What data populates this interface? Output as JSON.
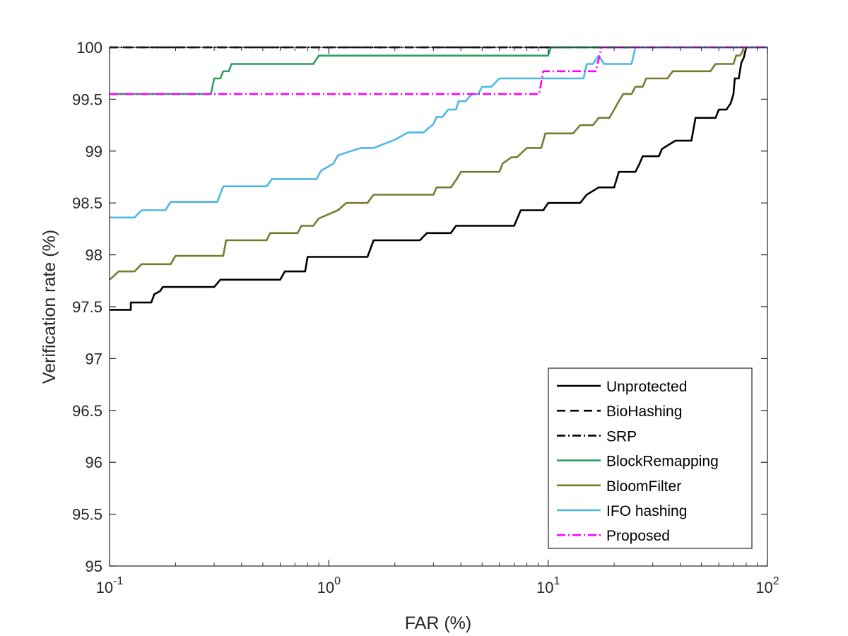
{
  "chart_data": {
    "type": "line",
    "title": "",
    "xlabel": "FAR (%)",
    "ylabel": "Verification rate (%)",
    "xscale": "log",
    "xlim": [
      0.1,
      100
    ],
    "ylim": [
      95,
      100
    ],
    "x_ticks": [
      0.1,
      1,
      10,
      100
    ],
    "x_tick_labels": [
      {
        "base": "10",
        "exp": "-1"
      },
      {
        "base": "10",
        "exp": "0"
      },
      {
        "base": "10",
        "exp": "1"
      },
      {
        "base": "10",
        "exp": "2"
      }
    ],
    "y_ticks": [
      "95",
      "95.5",
      "96",
      "96.5",
      "97",
      "97.5",
      "98",
      "98.5",
      "99",
      "99.5",
      "100"
    ],
    "grid": false,
    "legend_position": "bottom-right",
    "series": [
      {
        "name": "Unprotected",
        "color": "#000000",
        "dash": "solid",
        "x": [
          0.1,
          0.125,
          0.125,
          0.155,
          0.16,
          0.17,
          0.175,
          0.3,
          0.32,
          0.33,
          0.6,
          0.63,
          0.78,
          0.8,
          1.5,
          1.6,
          2.6,
          2.8,
          3.6,
          3.8,
          7.0,
          7.5,
          9.5,
          10,
          14,
          15,
          17,
          20,
          21,
          25,
          26,
          27,
          32,
          33,
          38,
          45,
          47,
          58,
          60,
          65,
          68,
          70,
          71,
          74,
          76,
          78,
          80,
          84,
          86,
          100
        ],
        "y": [
          97.47,
          97.47,
          97.54,
          97.54,
          97.62,
          97.65,
          97.69,
          97.69,
          97.76,
          97.76,
          97.76,
          97.84,
          97.84,
          97.98,
          97.98,
          98.14,
          98.14,
          98.21,
          98.21,
          98.28,
          98.28,
          98.43,
          98.43,
          98.5,
          98.5,
          98.58,
          98.65,
          98.65,
          98.8,
          98.8,
          98.87,
          98.95,
          98.95,
          99.02,
          99.1,
          99.1,
          99.32,
          99.32,
          99.4,
          99.4,
          99.46,
          99.55,
          99.7,
          99.7,
          99.85,
          99.9,
          100,
          100,
          100,
          100
        ]
      },
      {
        "name": "BioHashing",
        "color": "#000000",
        "dash": "dashed",
        "x": [
          0.1,
          100
        ],
        "y": [
          100,
          100
        ]
      },
      {
        "name": "SRP",
        "color": "#000000",
        "dash": "dashdot",
        "x": [
          0.1,
          100
        ],
        "y": [
          100,
          100
        ]
      },
      {
        "name": "BlockRemapping",
        "color": "#2ca25f",
        "dash": "solid",
        "x": [
          0.1,
          0.29,
          0.29,
          0.3,
          0.32,
          0.33,
          0.35,
          0.36,
          0.37,
          0.85,
          0.9,
          10.0,
          10.3,
          100
        ],
        "y": [
          99.55,
          99.55,
          99.55,
          99.7,
          99.7,
          99.77,
          99.77,
          99.84,
          99.84,
          99.84,
          99.92,
          99.92,
          100,
          100
        ]
      },
      {
        "name": "BloomFilter",
        "color": "#7a7a2e",
        "dash": "solid",
        "x": [
          0.1,
          0.105,
          0.11,
          0.13,
          0.14,
          0.19,
          0.2,
          0.33,
          0.34,
          0.52,
          0.54,
          0.72,
          0.75,
          0.85,
          0.9,
          1.1,
          1.2,
          1.5,
          1.6,
          3.0,
          3.1,
          3.6,
          3.8,
          4.0,
          6.0,
          6.2,
          6.8,
          7.2,
          8.0,
          9.3,
          9.7,
          13,
          14,
          16,
          17,
          19,
          20,
          21,
          22,
          24,
          25,
          27,
          28,
          35,
          37,
          55,
          58,
          70,
          72,
          75,
          77,
          78,
          80,
          82,
          100
        ],
        "y": [
          97.76,
          97.8,
          97.84,
          97.84,
          97.91,
          97.91,
          97.99,
          97.99,
          98.14,
          98.14,
          98.21,
          98.21,
          98.28,
          98.28,
          98.35,
          98.43,
          98.5,
          98.5,
          98.58,
          98.58,
          98.65,
          98.65,
          98.72,
          98.8,
          98.8,
          98.88,
          98.94,
          98.94,
          99.03,
          99.03,
          99.17,
          99.17,
          99.25,
          99.25,
          99.32,
          99.32,
          99.4,
          99.48,
          99.55,
          99.55,
          99.62,
          99.62,
          99.7,
          99.7,
          99.77,
          99.77,
          99.84,
          99.84,
          99.92,
          99.92,
          99.96,
          100,
          100,
          100,
          100
        ]
      },
      {
        "name": "IFO hashing",
        "color": "#4db8e8",
        "dash": "solid",
        "x": [
          0.1,
          0.13,
          0.14,
          0.18,
          0.19,
          0.31,
          0.33,
          0.52,
          0.55,
          0.88,
          0.92,
          1.05,
          1.1,
          1.4,
          1.6,
          2.0,
          2.3,
          2.7,
          3.0,
          3.1,
          3.3,
          3.5,
          3.8,
          3.9,
          4.2,
          4.5,
          4.8,
          5.0,
          5.5,
          6.0,
          6.5,
          9.5,
          14.5,
          15,
          16,
          17,
          18,
          24,
          25,
          100
        ],
        "y": [
          98.36,
          98.36,
          98.43,
          98.43,
          98.51,
          98.51,
          98.66,
          98.66,
          98.73,
          98.73,
          98.81,
          98.88,
          98.96,
          99.03,
          99.03,
          99.11,
          99.18,
          99.18,
          99.26,
          99.33,
          99.33,
          99.4,
          99.4,
          99.48,
          99.48,
          99.55,
          99.55,
          99.62,
          99.62,
          99.7,
          99.7,
          99.7,
          99.7,
          99.84,
          99.84,
          99.92,
          99.84,
          99.84,
          100,
          100
        ]
      },
      {
        "name": "Proposed",
        "color": "#ff00ff",
        "dash": "dashdot",
        "x": [
          0.1,
          9.1,
          9.5,
          16.5,
          17.5,
          100
        ],
        "y": [
          99.55,
          99.55,
          99.77,
          99.77,
          100,
          100
        ]
      }
    ]
  }
}
